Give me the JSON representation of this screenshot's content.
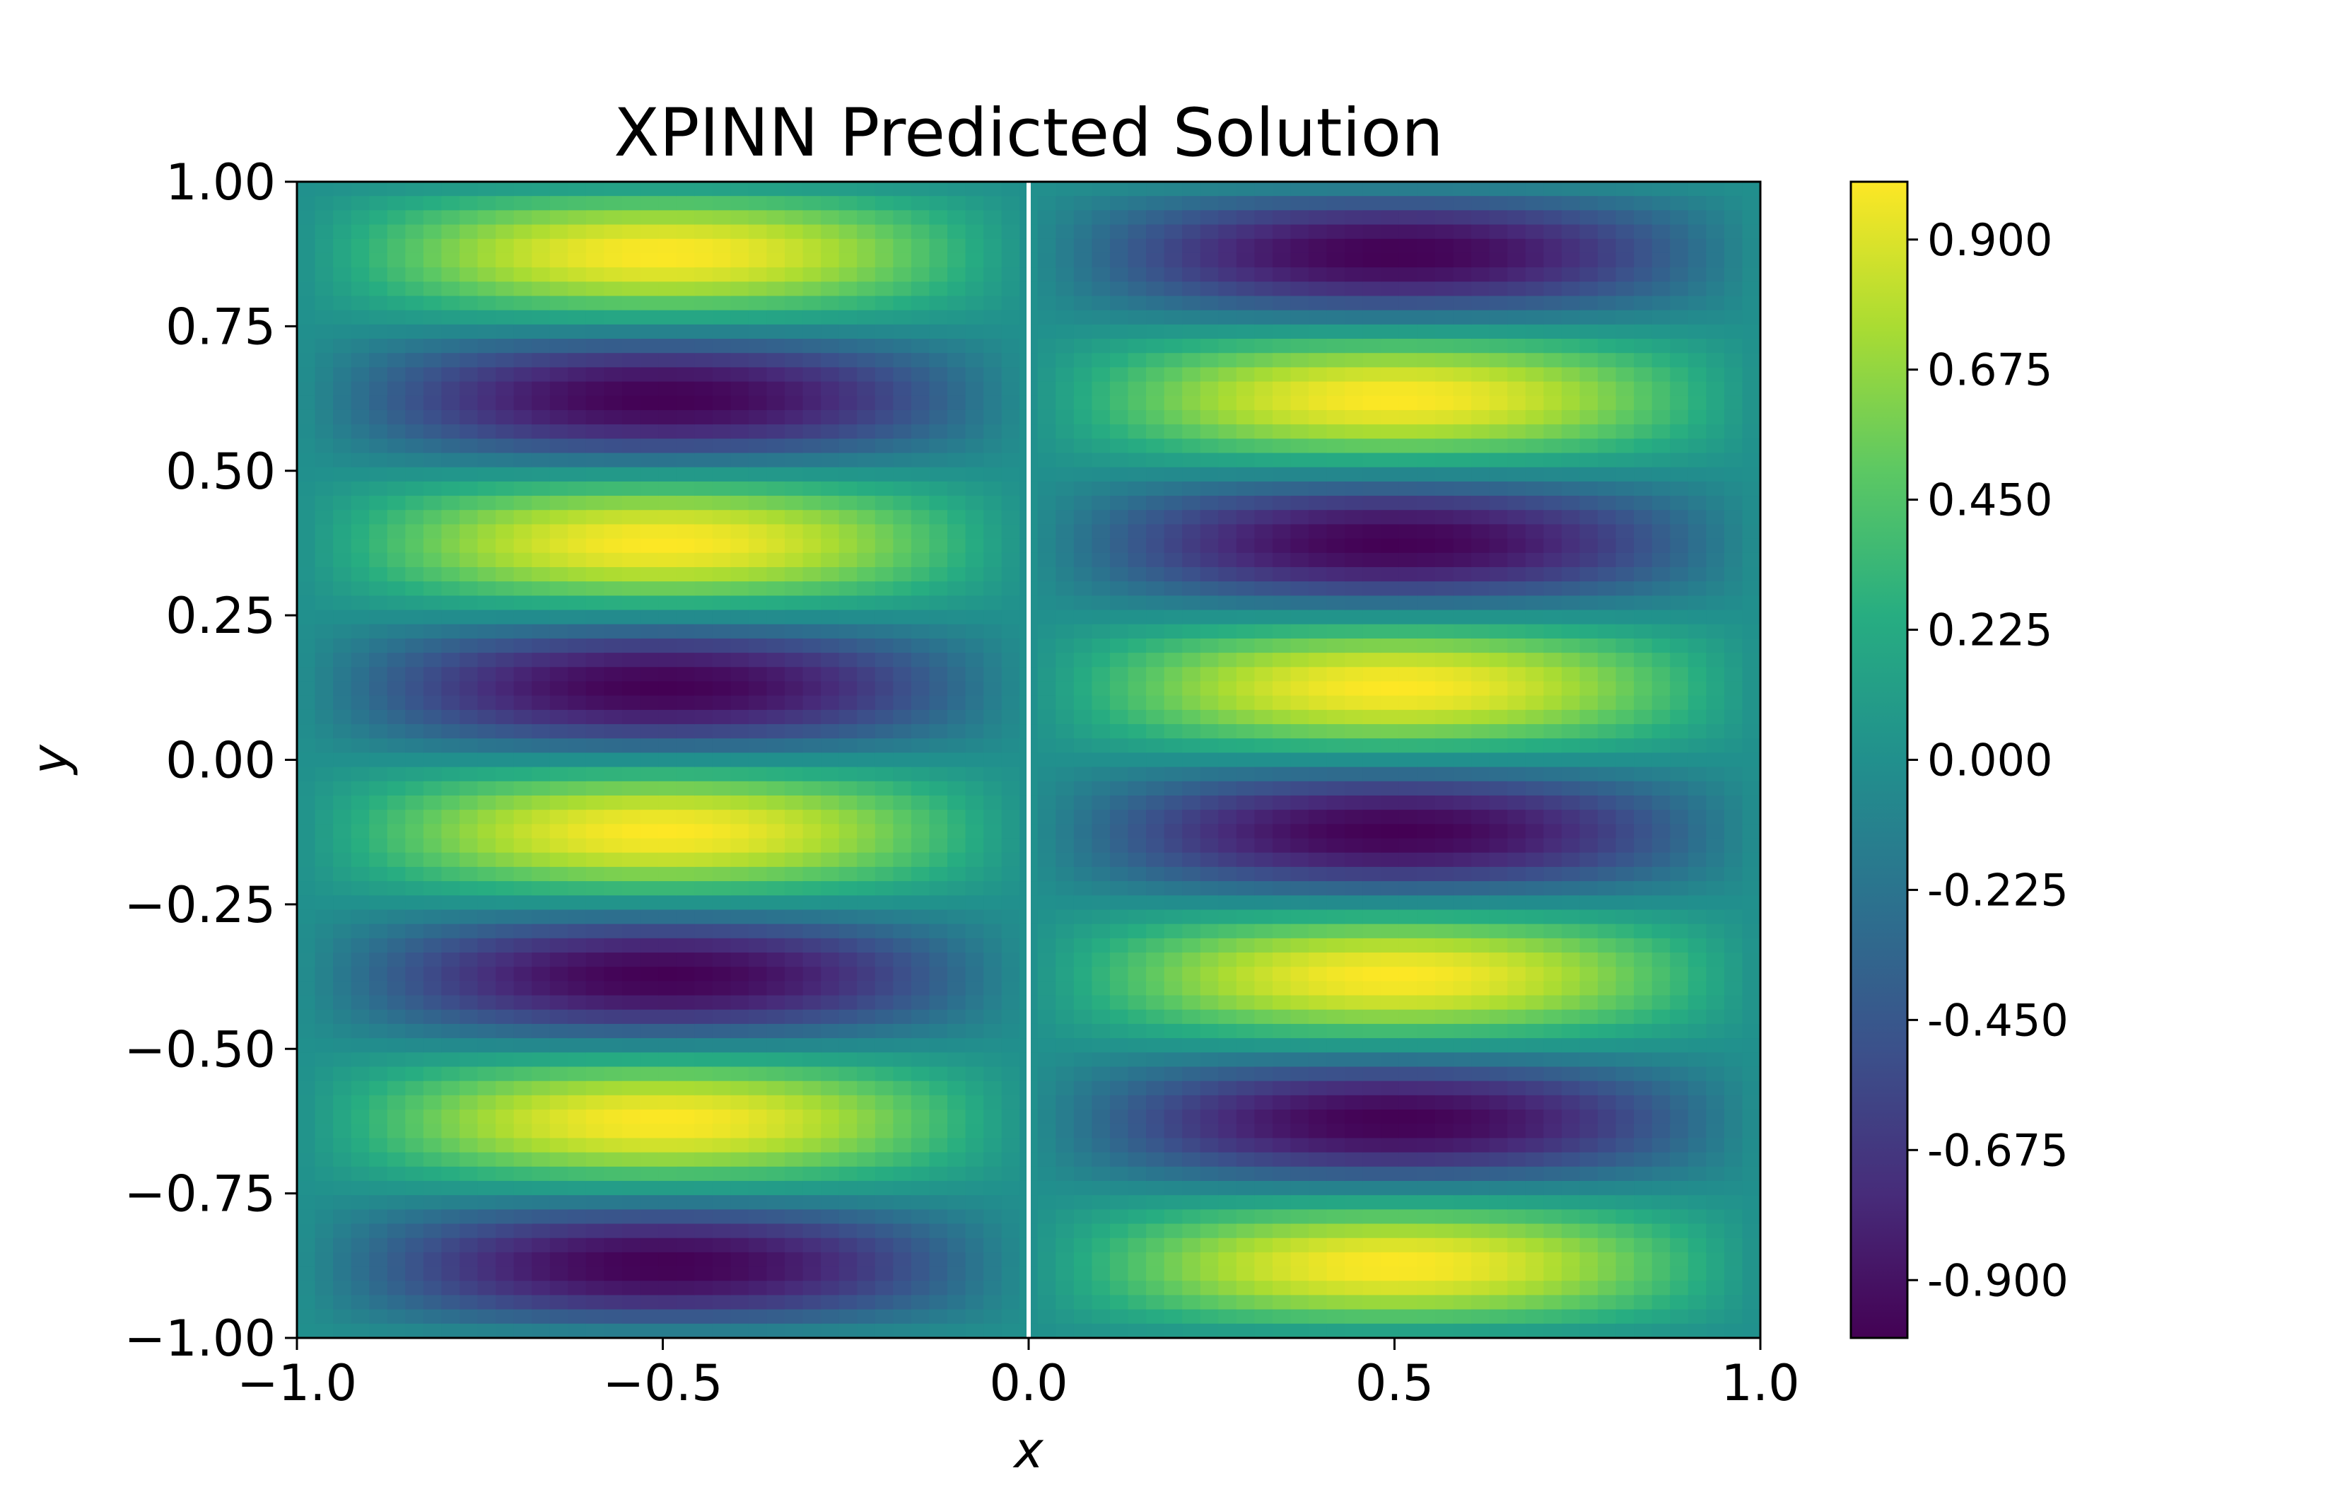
{
  "chart_data": {
    "type": "heatmap",
    "title": "XPINN Predicted Solution",
    "xlabel": "x",
    "ylabel": "y",
    "xlim": [
      -1.0,
      1.0
    ],
    "ylim": [
      -1.0,
      1.0
    ],
    "x_ticks": [
      -1.0,
      -0.5,
      0.0,
      0.5,
      1.0
    ],
    "x_tick_labels": [
      "−1.0",
      "−0.5",
      "0.0",
      "0.5",
      "1.0"
    ],
    "y_ticks": [
      1.0,
      0.75,
      0.5,
      0.25,
      0.0,
      -0.25,
      -0.5,
      -0.75,
      -1.0
    ],
    "y_tick_labels": [
      "1.00",
      "0.75",
      "0.50",
      "0.25",
      "0.00",
      "−0.25",
      "−0.50",
      "−0.75",
      "−1.00"
    ],
    "field": "u(x, y) = sin(πx) · sin(4πy)",
    "grid_resolution": 81,
    "subdomain_interface_x": 0.0,
    "interface_color": "#ffffff",
    "colorbar": {
      "range": [
        -1.0,
        1.0
      ],
      "colormap": "viridis",
      "ticks": [
        0.9,
        0.675,
        0.45,
        0.225,
        0.0,
        -0.225,
        -0.45,
        -0.675,
        -0.9
      ],
      "tick_labels": [
        "0.900",
        "0.675",
        "0.450",
        "0.225",
        "0.000",
        "-0.225",
        "-0.450",
        "-0.675",
        "-0.900"
      ]
    },
    "grid": false
  }
}
